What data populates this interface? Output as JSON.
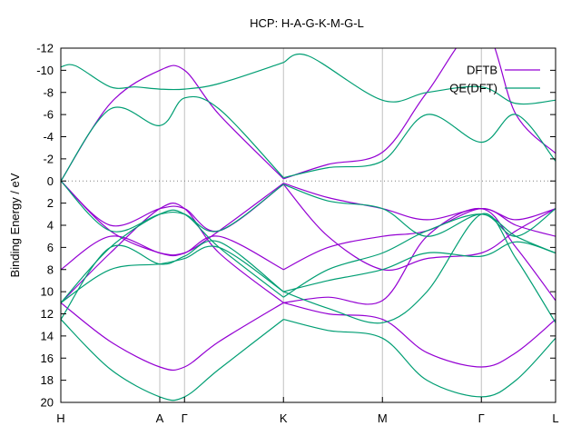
{
  "chart_data": {
    "type": "line",
    "title": "HCP: H-A-G-K-M-G-L",
    "xlabel": "",
    "ylabel": "Binding Energy / eV",
    "xlim": [
      0,
      5
    ],
    "ylim": [
      -12,
      20
    ],
    "y_inverted": true,
    "yticks": [
      -12,
      -10,
      -8,
      -6,
      -4,
      -2,
      0,
      2,
      4,
      6,
      8,
      10,
      12,
      14,
      16,
      18,
      20
    ],
    "ytick_labels": [
      "-12",
      "-10",
      "-8",
      "-6",
      "-4",
      "-2",
      "0",
      "2",
      "4",
      "6",
      "8",
      "10",
      "12",
      "14",
      "16",
      "18",
      "20"
    ],
    "xticks": [
      {
        "label": "H",
        "x": 0
      },
      {
        "label": "A",
        "x": 1
      },
      {
        "label": "Γ",
        "x": 1.25
      },
      {
        "label": "K",
        "x": 2.25
      },
      {
        "label": "M",
        "x": 3.25
      },
      {
        "label": "Γ",
        "x": 4.25
      },
      {
        "label": "L",
        "x": 5
      }
    ],
    "zero_line": true,
    "legend_position": "top-right",
    "colors": {
      "DFTB": "#9400d3",
      "QE(DFT)": "#009e73",
      "grid": "#c0c0c0",
      "axis": "#000000"
    },
    "series": [
      {
        "name": "DFTB",
        "label": "DFTB",
        "color": "#9400d3",
        "bands": [
          {
            "x": [
              0,
              0.5,
              1,
              1.25,
              1.6,
              2.25
            ],
            "y": [
              0,
              -7,
              -10,
              -10,
              -6,
              -0.2
            ]
          },
          {
            "x": [
              2.25,
              2.7,
              3.25,
              3.7,
              4.25,
              4.6,
              5
            ],
            "y": [
              -0.2,
              -1.5,
              -2.6,
              -8,
              -14,
              -6,
              -2.5
            ]
          },
          {
            "x": [
              0,
              0.5,
              1,
              1.25,
              1.6,
              2.25
            ],
            "y": [
              0,
              4.5,
              6.5,
              6.5,
              4.5,
              0.2
            ]
          },
          {
            "x": [
              2.25,
              2.7,
              3.25,
              3.7,
              4.25,
              4.6,
              5
            ],
            "y": [
              0.2,
              1.5,
              2.5,
              3.5,
              2.5,
              3.5,
              2.5
            ]
          },
          {
            "x": [
              0,
              0.5,
              1,
              1.25,
              1.6,
              2.25
            ],
            "y": [
              0,
              4,
              2.5,
              2.5,
              4.5,
              0.3
            ]
          },
          {
            "x": [
              2.25,
              2.7,
              3.25,
              3.7,
              4.25,
              4.6,
              5
            ],
            "y": [
              0.3,
              5,
              8,
              7,
              6.5,
              4.5,
              2.5
            ]
          },
          {
            "x": [
              0,
              0.5,
              1,
              1.25,
              1.6,
              2.25
            ],
            "y": [
              8,
              5,
              6.5,
              6.5,
              5,
              8
            ]
          },
          {
            "x": [
              2.25,
              2.7,
              3.25,
              3.7,
              4.25,
              4.6,
              5
            ],
            "y": [
              8,
              6,
              5,
              4.5,
              2.5,
              4,
              5
            ]
          },
          {
            "x": [
              0,
              0.5,
              1,
              1.25,
              1.6,
              2.25
            ],
            "y": [
              11,
              6.5,
              2.5,
              2.5,
              6.5,
              11
            ]
          },
          {
            "x": [
              2.25,
              2.7,
              3.25,
              3.7,
              4.25,
              4.6,
              5
            ],
            "y": [
              11,
              10.5,
              10.8,
              5,
              2.5,
              6,
              10.8
            ]
          },
          {
            "x": [
              0,
              0.5,
              1,
              1.25,
              1.6,
              2.25
            ],
            "y": [
              11,
              14.5,
              16.8,
              16.8,
              14.5,
              11
            ]
          },
          {
            "x": [
              2.25,
              2.7,
              3.25,
              3.7,
              4.25,
              4.6,
              5
            ],
            "y": [
              11,
              12,
              12.5,
              15.5,
              16.8,
              15.5,
              12.5
            ]
          }
        ]
      },
      {
        "name": "QE(DFT)",
        "label": "QE(DFT)",
        "color": "#009e73",
        "bands": [
          {
            "x": [
              0,
              0.15,
              0.5,
              0.75,
              1,
              1.25,
              1.6,
              2.25
            ],
            "y": [
              -10.3,
              -10.4,
              -8.5,
              -8.5,
              -8.3,
              -8.3,
              -8.8,
              -10.7
            ]
          },
          {
            "x": [
              2.25,
              2.5,
              3.25,
              3.7,
              4.25,
              4.6,
              5
            ],
            "y": [
              -10.7,
              -11.3,
              -7.3,
              -8,
              -8.5,
              -7,
              -7.3
            ]
          },
          {
            "x": [
              0,
              0.5,
              1,
              1.25,
              1.6,
              2.25
            ],
            "y": [
              0,
              -6.5,
              -5,
              -7.5,
              -6.5,
              -0.3
            ]
          },
          {
            "x": [
              2.25,
              2.7,
              3.25,
              3.7,
              4.25,
              4.6,
              5
            ],
            "y": [
              -0.3,
              -1.2,
              -1.8,
              -6,
              -3.5,
              -6,
              -1.8
            ]
          },
          {
            "x": [
              0,
              0.5,
              1,
              1.25,
              1.6,
              2.25
            ],
            "y": [
              0,
              4.5,
              3,
              3,
              4.5,
              0.3
            ]
          },
          {
            "x": [
              2.25,
              2.7,
              3.25,
              3.7,
              4.25,
              4.6,
              5
            ],
            "y": [
              0.3,
              1.8,
              2.5,
              5,
              3,
              5,
              2.5
            ]
          },
          {
            "x": [
              0,
              0.5,
              1,
              1.25,
              1.6,
              2.25
            ],
            "y": [
              11,
              6,
              3,
              3,
              6,
              10.5
            ]
          },
          {
            "x": [
              2.25,
              2.7,
              3.25,
              3.7,
              4.25,
              4.6,
              5
            ],
            "y": [
              10.5,
              8,
              6.5,
              4.5,
              3,
              5,
              6.5
            ]
          },
          {
            "x": [
              0,
              0.5,
              1,
              1.25,
              1.6,
              2.25
            ],
            "y": [
              11,
              8,
              7.5,
              7,
              6,
              10
            ]
          },
          {
            "x": [
              2.25,
              2.7,
              3.25,
              3.7,
              4.25,
              4.6,
              5
            ],
            "y": [
              10,
              9,
              8,
              6.5,
              6.8,
              5.5,
              6.5
            ]
          },
          {
            "x": [
              0,
              0.5,
              1,
              1.25,
              1.6,
              2.25
            ],
            "y": [
              12.5,
              6,
              7.5,
              6.8,
              5.5,
              10
            ]
          },
          {
            "x": [
              2.25,
              2.7,
              3.25,
              3.7,
              4.25,
              4.6,
              5
            ],
            "y": [
              10,
              11.5,
              12.8,
              10,
              3,
              7,
              12.8
            ]
          },
          {
            "x": [
              0,
              0.5,
              1,
              1.25,
              1.6,
              2.25
            ],
            "y": [
              12.5,
              17,
              19.5,
              19.5,
              17,
              12.5
            ]
          },
          {
            "x": [
              2.25,
              2.7,
              3.25,
              3.7,
              4.25,
              4.6,
              5
            ],
            "y": [
              12.5,
              13.5,
              14.2,
              18,
              19.5,
              18,
              14.2
            ]
          }
        ]
      }
    ]
  }
}
